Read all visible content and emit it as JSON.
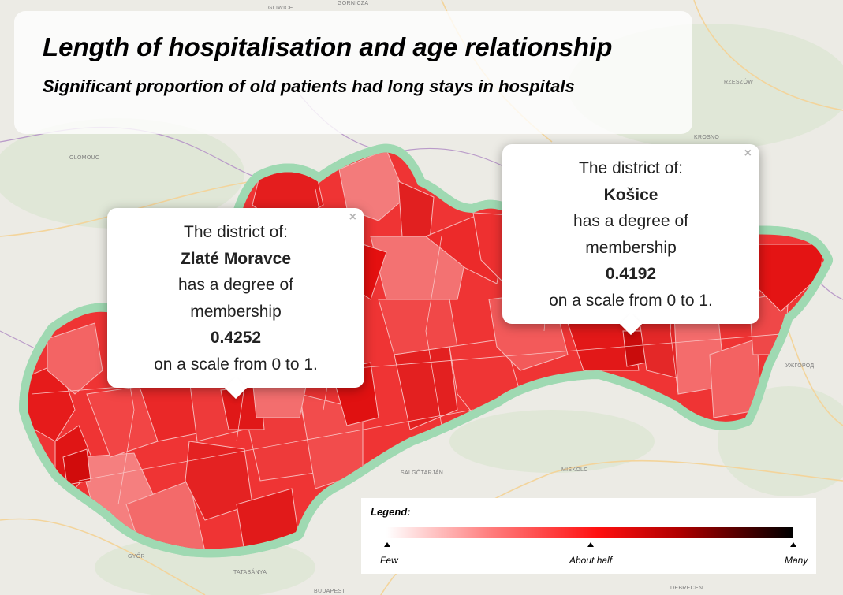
{
  "header": {
    "title": "Length of hospitalisation and age relationship",
    "subtitle": "Significant proportion of old patients had long stays in hospitals"
  },
  "popups": [
    {
      "intro": "The district of:",
      "district": "Zlaté Moravce",
      "line1": "has a degree of",
      "line2": "membership",
      "value": "0.4252",
      "scale": "on a scale from 0 to 1.",
      "close_symbol": "×"
    },
    {
      "intro": "The district of:",
      "district": "Košice",
      "line1": "has a degree of",
      "line2": "membership",
      "value": "0.4192",
      "scale": "on a scale from 0 to 1.",
      "close_symbol": "×"
    }
  ],
  "legend": {
    "title": "Legend:",
    "low": "Few",
    "mid": "About half",
    "high": "Many"
  },
  "basemap_labels": [
    "GLIWICE",
    "GORNICZA",
    "RZESZÓW",
    "OLOMOUC",
    "KROSNO",
    "SALGÓTARJÁN",
    "MISKOLC",
    "GYŐR",
    "TATABÁNYA",
    "DEBRECEN",
    "BUDAPEST",
    "УЖГОРОД"
  ],
  "colors": {
    "country_halo": "#9fd9b2",
    "region_stroke": "#f6b5b5",
    "choropleth_dark": "#e01515",
    "choropleth_mid": "#f03838",
    "choropleth_light": "#f77a7a"
  }
}
